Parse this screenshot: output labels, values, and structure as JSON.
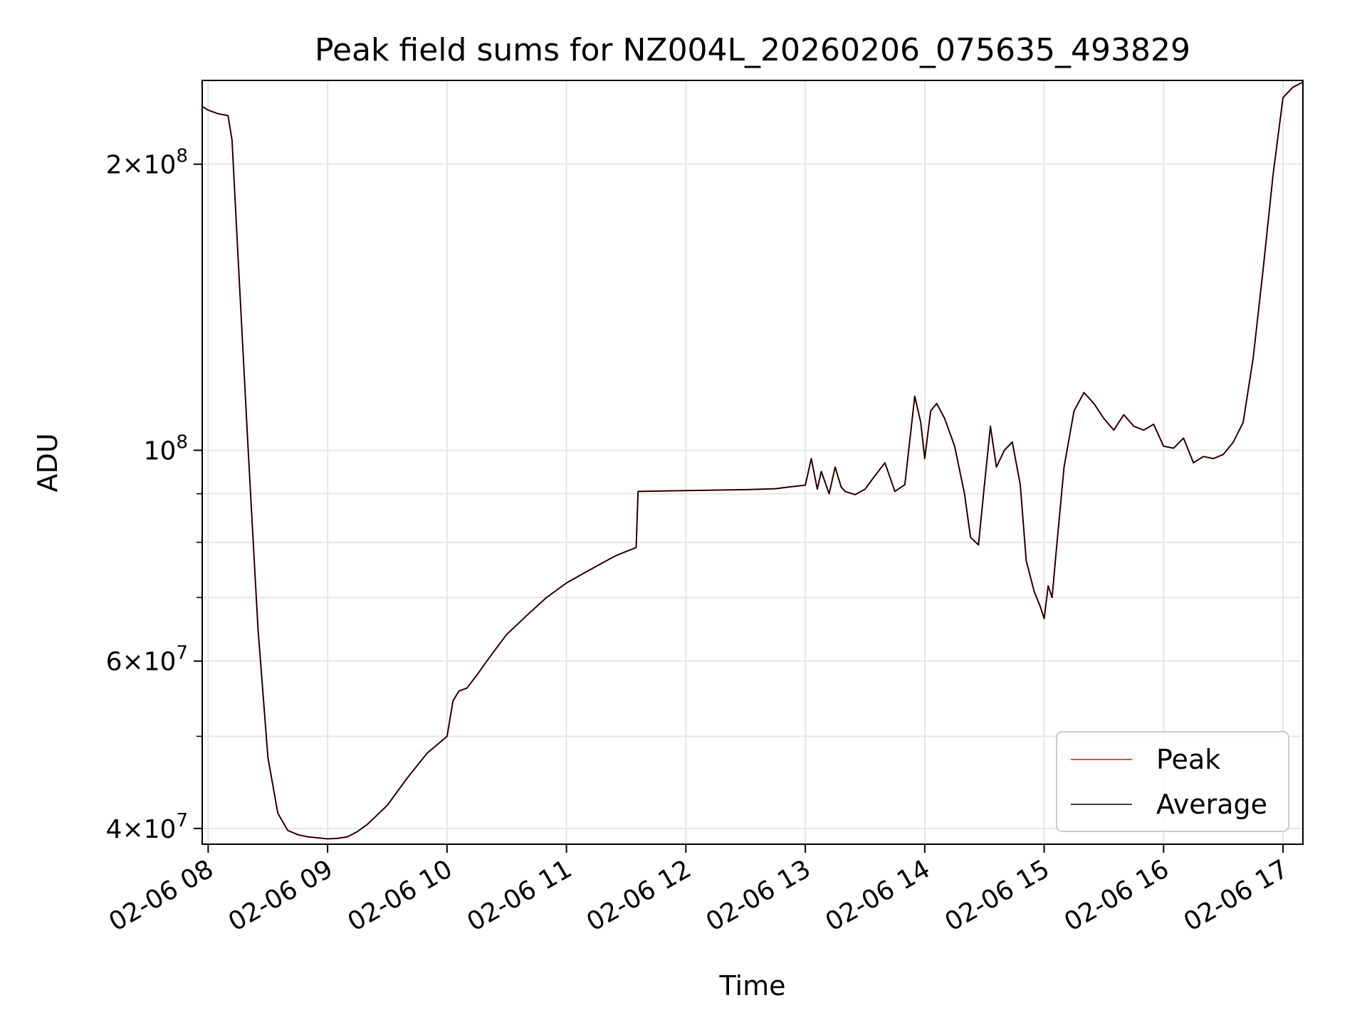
{
  "chart_data": {
    "type": "line",
    "title": "Peak field sums for NZ004L_20260206_075635_493829",
    "xlabel": "Time",
    "ylabel": "ADU",
    "yscale": "log",
    "xlim": [
      "02-06 07:57",
      "02-06 17:10"
    ],
    "ylim": [
      38500000,
      245000000
    ],
    "grid": true,
    "legend_position": "lower-right",
    "x_ticks": [
      "02-06 08",
      "02-06 09",
      "02-06 10",
      "02-06 11",
      "02-06 12",
      "02-06 13",
      "02-06 14",
      "02-06 15",
      "02-06 16",
      "02-06 17"
    ],
    "y_ticks": [
      {
        "value": 40000000,
        "mantissa": "4",
        "exponent": "7"
      },
      {
        "value": 60000000,
        "mantissa": "6",
        "exponent": "7"
      },
      {
        "value": 100000000,
        "mantissa": "",
        "exponent": "8"
      },
      {
        "value": 200000000,
        "mantissa": "2",
        "exponent": "8"
      }
    ],
    "y_minor_ticks": [
      50000000,
      70000000,
      80000000,
      90000000
    ],
    "x": [
      "07:57",
      "08:00",
      "08:05",
      "08:10",
      "08:12",
      "08:15",
      "08:20",
      "08:25",
      "08:30",
      "08:35",
      "08:40",
      "08:45",
      "08:50",
      "08:55",
      "09:00",
      "09:05",
      "09:10",
      "09:15",
      "09:20",
      "09:30",
      "09:40",
      "09:50",
      "10:00",
      "10:03",
      "10:06",
      "10:10",
      "10:15",
      "10:20",
      "10:25",
      "10:30",
      "10:40",
      "10:50",
      "11:00",
      "11:10",
      "11:20",
      "11:25",
      "11:35",
      "11:36",
      "12:00",
      "12:30",
      "12:45",
      "12:52",
      "12:58",
      "13:00",
      "13:03",
      "13:06",
      "13:08",
      "13:12",
      "13:15",
      "13:18",
      "13:20",
      "13:25",
      "13:30",
      "13:35",
      "13:40",
      "13:45",
      "13:50",
      "13:55",
      "13:58",
      "14:00",
      "14:03",
      "14:06",
      "14:10",
      "14:15",
      "14:20",
      "14:23",
      "14:27",
      "14:30",
      "14:33",
      "14:36",
      "14:40",
      "14:44",
      "14:48",
      "14:51",
      "14:55",
      "14:58",
      "15:00",
      "15:02",
      "15:04",
      "15:06",
      "15:10",
      "15:15",
      "15:20",
      "15:25",
      "15:30",
      "15:35",
      "15:40",
      "15:45",
      "15:50",
      "15:55",
      "16:00",
      "16:05",
      "16:10",
      "16:15",
      "16:20",
      "16:25",
      "16:30",
      "16:35",
      "16:40",
      "16:45",
      "16:50",
      "16:55",
      "17:00",
      "17:05",
      "17:10"
    ],
    "series": [
      {
        "name": "Peak",
        "color": "#ff0000",
        "values": [
          230000000,
          228000000,
          226000000,
          225000000,
          212000000,
          160000000,
          101000000,
          65000000,
          47500000,
          41500000,
          39800000,
          39400000,
          39200000,
          39100000,
          39000000,
          39050000,
          39200000,
          39700000,
          40400000,
          42300000,
          45200000,
          48000000,
          50000000,
          54500000,
          55800000,
          56200000,
          58000000,
          60000000,
          62000000,
          64000000,
          67000000,
          70000000,
          72500000,
          74500000,
          76500000,
          77500000,
          79000000,
          90500000,
          90700000,
          90900000,
          91100000,
          91500000,
          91800000,
          91900000,
          98000000,
          91000000,
          95000000,
          90000000,
          96000000,
          91500000,
          90500000,
          89800000,
          91000000,
          94000000,
          97000000,
          90500000,
          92000000,
          114000000,
          107000000,
          98000000,
          110000000,
          112000000,
          108000000,
          101000000,
          90000000,
          81000000,
          79500000,
          92000000,
          106000000,
          96000000,
          100000000,
          102000000,
          92000000,
          76500000,
          71000000,
          68500000,
          66500000,
          72000000,
          70000000,
          78000000,
          96000000,
          110000000,
          115000000,
          112000000,
          108000000,
          105000000,
          109000000,
          106000000,
          105000000,
          106500000,
          101000000,
          100500000,
          103000000,
          97000000,
          98500000,
          98000000,
          99000000,
          102000000,
          107000000,
          125000000,
          155000000,
          195000000,
          235000000,
          241000000,
          244000000
        ]
      },
      {
        "name": "Average",
        "color": "#000000",
        "values": [
          230000000,
          228000000,
          226000000,
          225000000,
          212000000,
          160000000,
          101000000,
          65000000,
          47500000,
          41500000,
          39800000,
          39400000,
          39200000,
          39100000,
          39000000,
          39050000,
          39200000,
          39700000,
          40400000,
          42300000,
          45200000,
          48000000,
          50000000,
          54500000,
          55800000,
          56200000,
          58000000,
          60000000,
          62000000,
          64000000,
          67000000,
          70000000,
          72500000,
          74500000,
          76500000,
          77500000,
          79000000,
          90500000,
          90700000,
          90900000,
          91100000,
          91500000,
          91800000,
          91900000,
          98000000,
          91000000,
          95000000,
          90000000,
          96000000,
          91500000,
          90500000,
          89800000,
          91000000,
          94000000,
          97000000,
          90500000,
          92000000,
          114000000,
          107000000,
          98000000,
          110000000,
          112000000,
          108000000,
          101000000,
          90000000,
          81000000,
          79500000,
          92000000,
          106000000,
          96000000,
          100000000,
          102000000,
          92000000,
          76500000,
          71000000,
          68500000,
          66500000,
          72000000,
          70000000,
          78000000,
          96000000,
          110000000,
          115000000,
          112000000,
          108000000,
          105000000,
          109000000,
          106000000,
          105000000,
          106500000,
          101000000,
          100500000,
          103000000,
          97000000,
          98500000,
          98000000,
          99000000,
          102000000,
          107000000,
          125000000,
          155000000,
          195000000,
          235000000,
          241000000,
          244000000
        ]
      }
    ]
  }
}
